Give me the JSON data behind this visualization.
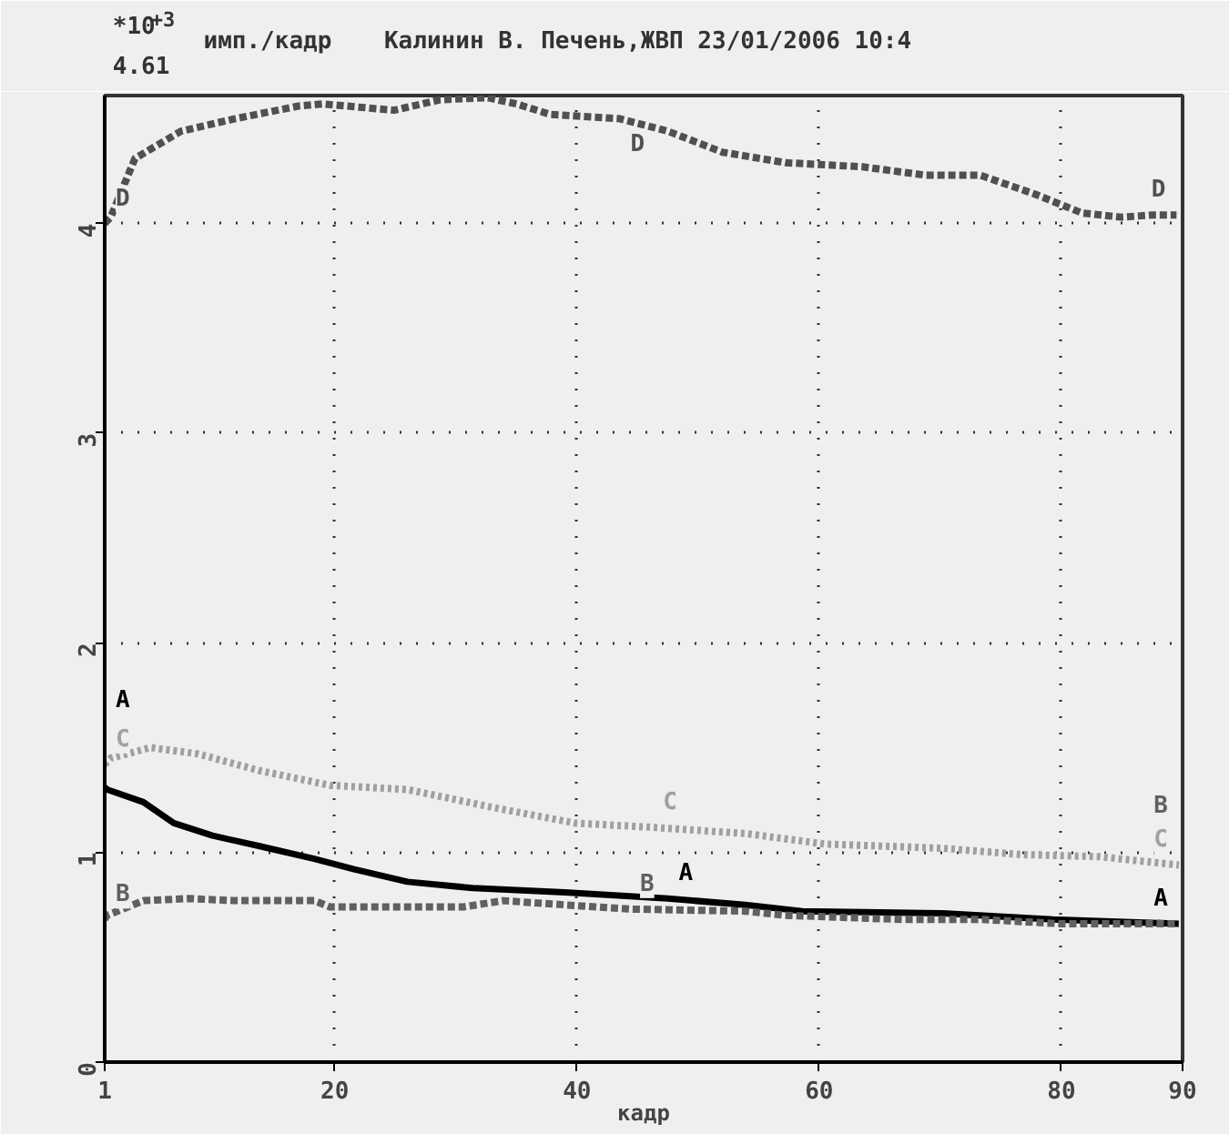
{
  "chart_data": {
    "type": "line",
    "title": "Калинин В.   Печень,ЖВП 23/01/2006 10:4",
    "xlabel": "кадр",
    "ylabel": "имп./кадр",
    "annotations": [
      "*10$^{+3}$",
      "4.61"
    ],
    "xlim": [
      1,
      90
    ],
    "ylim": [
      0,
      4.61
    ],
    "xticks": [
      1,
      20,
      40,
      60,
      80,
      90
    ],
    "yticks": [
      0,
      1,
      2,
      3,
      4
    ],
    "grid": true,
    "marker": "none",
    "series": [
      {
        "name": "D",
        "color": "#505050",
        "line_style": "dashed",
        "x": [
          1,
          1.5,
          3.5,
          7.3,
          11.8,
          17,
          19,
          24.9,
          28.7,
          32.6,
          35,
          37.8,
          43.5,
          47.5,
          52,
          57.2,
          63.6,
          68.8,
          73.3,
          77.8,
          81.7,
          84.9,
          87.5,
          89.5
        ],
        "values": [
          4.0,
          4.03,
          4.31,
          4.44,
          4.5,
          4.56,
          4.57,
          4.54,
          4.59,
          4.6,
          4.57,
          4.52,
          4.5,
          4.44,
          4.34,
          4.29,
          4.27,
          4.23,
          4.23,
          4.14,
          4.05,
          4.03,
          4.04,
          4.04
        ]
      },
      {
        "name": "C",
        "color": "#a0a0a0",
        "line_style": "dotted",
        "x": [
          1,
          1.5,
          4.8,
          8.7,
          13.8,
          19.6,
          26,
          32.6,
          39.8,
          46.2,
          53.9,
          60.5,
          70.2,
          76.6,
          83.1,
          89.7
        ],
        "values": [
          1.42,
          1.45,
          1.5,
          1.47,
          1.39,
          1.32,
          1.3,
          1.22,
          1.14,
          1.12,
          1.09,
          1.04,
          1.02,
          0.99,
          0.98,
          0.94
        ]
      },
      {
        "name": "A",
        "color": "#000000",
        "line_style": "solid",
        "x": [
          1,
          1.2,
          4.2,
          6.7,
          9.9,
          13.8,
          18.3,
          21.6,
          26,
          31.4,
          39,
          47.5,
          53.9,
          58.6,
          70.2,
          79.3,
          89.7
        ],
        "values": [
          1.31,
          1.3,
          1.24,
          1.14,
          1.08,
          1.03,
          0.97,
          0.92,
          0.86,
          0.83,
          0.81,
          0.78,
          0.75,
          0.72,
          0.71,
          0.68,
          0.66
        ]
      },
      {
        "name": "B",
        "color": "#606060",
        "line_style": "dashed",
        "x": [
          1,
          1.2,
          4.2,
          7.9,
          11.8,
          18.3,
          19.6,
          30.6,
          33.9,
          39,
          44.3,
          53.9,
          57.2,
          67,
          73.5,
          79.9,
          89.7
        ],
        "values": [
          0.68,
          0.7,
          0.77,
          0.78,
          0.77,
          0.77,
          0.74,
          0.74,
          0.77,
          0.75,
          0.73,
          0.72,
          0.7,
          0.68,
          0.68,
          0.66,
          0.66
        ]
      }
    ]
  }
}
